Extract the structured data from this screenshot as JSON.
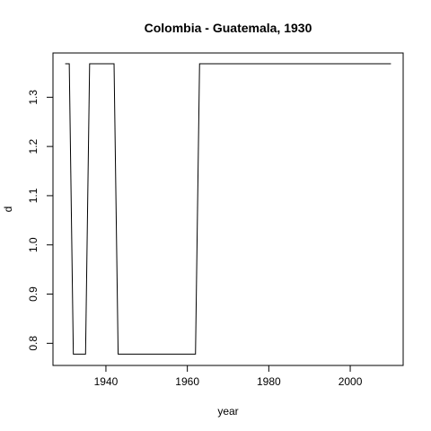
{
  "chart_data": {
    "type": "line",
    "title": "Colombia - Guatemala, 1930",
    "xlabel": "year",
    "ylabel": "d",
    "xlim": [
      1927,
      2013
    ],
    "ylim": [
      0.755,
      1.39
    ],
    "xticks": [
      1940,
      1960,
      1980,
      2000
    ],
    "yticks": [
      0.8,
      0.9,
      1.0,
      1.1,
      1.2,
      1.3
    ],
    "xtick_labels": [
      "1940",
      "1960",
      "1980",
      "2000"
    ],
    "ytick_labels": [
      "0.8",
      "0.9",
      "1.0",
      "1.1",
      "1.2",
      "1.3"
    ],
    "grid": false,
    "series": [
      {
        "color": "#000000",
        "x": [
          1930,
          1931,
          1932,
          1933,
          1934,
          1935,
          1936,
          1937,
          1938,
          1939,
          1940,
          1941,
          1942,
          1943,
          1944,
          1945,
          1946,
          1947,
          1948,
          1949,
          1950,
          1951,
          1952,
          1953,
          1954,
          1955,
          1956,
          1957,
          1958,
          1959,
          1960,
          1961,
          1962,
          1963,
          1964,
          1965,
          1966,
          1967,
          1968,
          1969,
          1970,
          1971,
          1972,
          1973,
          1974,
          1975,
          1976,
          1977,
          1978,
          1979,
          1980,
          1981,
          1982,
          1983,
          1984,
          1985,
          1986,
          1987,
          1988,
          1989,
          1990,
          1991,
          1992,
          1993,
          1994,
          1995,
          1996,
          1997,
          1998,
          1999,
          2000,
          2001,
          2002,
          2003,
          2004,
          2005,
          2006,
          2007,
          2008,
          2009,
          2010
        ],
        "y": [
          1.368,
          1.368,
          0.778,
          0.778,
          0.778,
          0.778,
          1.368,
          1.368,
          1.368,
          1.368,
          1.368,
          1.368,
          1.368,
          0.778,
          0.778,
          0.778,
          0.778,
          0.778,
          0.778,
          0.778,
          0.778,
          0.778,
          0.778,
          0.778,
          0.778,
          0.778,
          0.778,
          0.778,
          0.778,
          0.778,
          0.778,
          0.778,
          0.778,
          1.368,
          1.368,
          1.368,
          1.368,
          1.368,
          1.368,
          1.368,
          1.368,
          1.368,
          1.368,
          1.368,
          1.368,
          1.368,
          1.368,
          1.368,
          1.368,
          1.368,
          1.368,
          1.368,
          1.368,
          1.368,
          1.368,
          1.368,
          1.368,
          1.368,
          1.368,
          1.368,
          1.368,
          1.368,
          1.368,
          1.368,
          1.368,
          1.368,
          1.368,
          1.368,
          1.368,
          1.368,
          1.368,
          1.368,
          1.368,
          1.368,
          1.368,
          1.368,
          1.368,
          1.368,
          1.368,
          1.368,
          1.368
        ]
      }
    ]
  }
}
